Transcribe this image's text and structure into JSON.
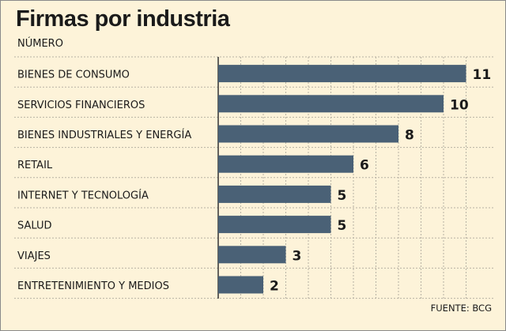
{
  "title": "Firmas por industria",
  "subtitle": "NÚMERO",
  "source": "FUENTE: BCG",
  "colors": {
    "background": "#fdf3d9",
    "bar": "#4a6176",
    "grid": "#b8b2a4",
    "axis": "#333333"
  },
  "chart_data": {
    "type": "bar",
    "orientation": "horizontal",
    "title": "Firmas por industria",
    "subtitle": "NÚMERO",
    "categories": [
      "BIENES DE CONSUMO",
      "SERVICIOS FINANCIEROS",
      "BIENES INDUSTRIALES Y ENERGÍA",
      "RETAIL",
      "INTERNET Y TECNOLOGÍA",
      "SALUD",
      "VIAJES",
      "ENTRETENIMIENTO Y MEDIOS"
    ],
    "values": [
      11,
      10,
      8,
      6,
      5,
      5,
      3,
      2
    ],
    "xlim": [
      0,
      12
    ],
    "grid": true,
    "data_labels": true
  }
}
